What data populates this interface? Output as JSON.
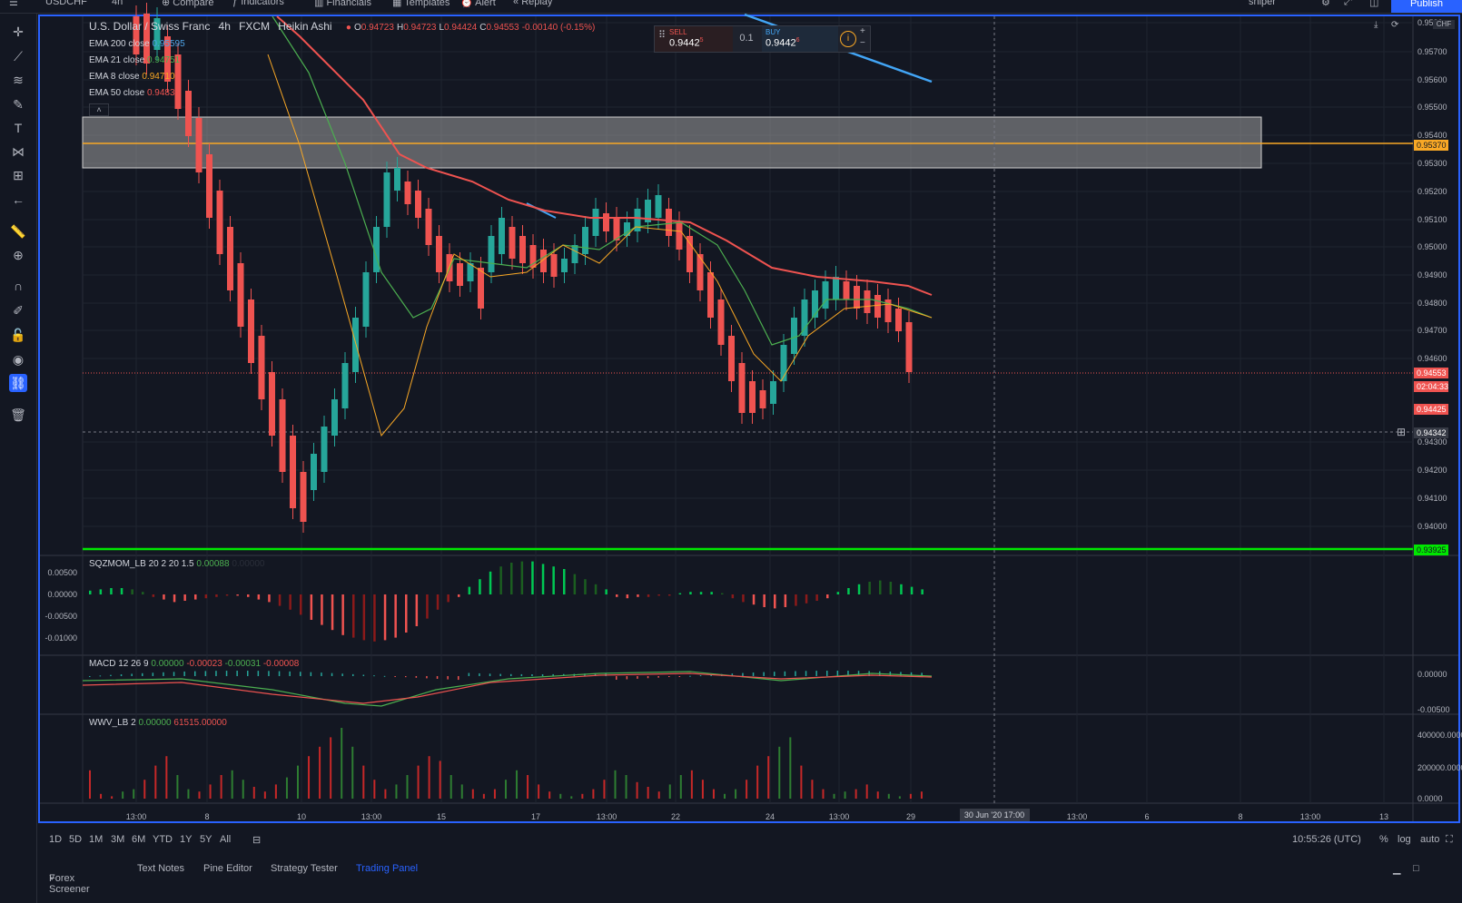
{
  "topbar": {
    "symbol": "USDCHF",
    "interval": "4h",
    "compare": "Compare",
    "indicators": "Indicators",
    "financials": "Financials",
    "templates": "Templates",
    "alert": "Alert",
    "replay": "Replay",
    "layout_name": "sniper",
    "publish": "Publish"
  },
  "legend": {
    "title": "U.S. Dollar / Swiss Franc",
    "interval": "4h",
    "exchange": "FXCM",
    "charttype": "Heikin Ashi",
    "o_label": "O",
    "o": "0.94723",
    "h_label": "H",
    "h": "0.94723",
    "l_label": "L",
    "l": "0.94424",
    "c_label": "C",
    "c": "0.94553",
    "chg": "-0.00140 (-0.15%)",
    "emas": [
      {
        "label": "EMA 200 close",
        "value": "0.95595",
        "color": "#4ea3e6"
      },
      {
        "label": "EMA 21 close",
        "value": "0.94751",
        "color": "#4caf50"
      },
      {
        "label": "EMA 8 close",
        "value": "0.94710",
        "color": "#f9a825"
      },
      {
        "label": "EMA 50 close",
        "value": "0.94836",
        "color": "#ef5350"
      }
    ]
  },
  "trade": {
    "sell_label": "SELL",
    "sell_price": "0.9442",
    "sell_pip": "5",
    "qty": "0.1",
    "buy_label": "BUY",
    "buy_price": "0.9442",
    "buy_pip": "6",
    "plus": "+",
    "minus": "−"
  },
  "price_axis": {
    "currency": "CHF",
    "ticks": [
      "0.9580",
      "0.95700",
      "0.95600",
      "0.95500",
      "0.95400",
      "0.95300",
      "0.95200",
      "0.95100",
      "0.95000",
      "0.94900",
      "0.94800",
      "0.94700",
      "0.94600",
      "0.94300",
      "0.94200",
      "0.94100",
      "0.94000"
    ],
    "marker_orange": "0.95370",
    "marker_price": "0.94553",
    "marker_countdown": "02:04:33",
    "marker_bid": "0.94425",
    "marker_cursor": "0.94342",
    "marker_green": "0.93925"
  },
  "time_axis": {
    "labels": [
      "13:00",
      "8",
      "10",
      "13:00",
      "15",
      "17",
      "13:00",
      "22",
      "24",
      "13:00",
      "29",
      "13:00",
      "6",
      "8",
      "13:00",
      "13"
    ],
    "cursor_label": "30 Jun '20   17:00"
  },
  "sqz": {
    "title": "SQZMOM_LB 20 2 20 1.5",
    "v1": "0.00088",
    "v2": "0.00000",
    "ticks": [
      "0.00500",
      "0.00000",
      "-0.00500",
      "-0.01000"
    ]
  },
  "macd": {
    "title": "MACD 12 26 9",
    "v1": "0.00000",
    "v2": "-0.00023",
    "v3": "-0.00031",
    "v4": "-0.00008",
    "ticks": [
      "0.00000",
      "-0.00500"
    ]
  },
  "wwv": {
    "title": "WWV_LB 2",
    "v1": "0.00000",
    "v2": "61515.00000",
    "ticks": [
      "400000.0000",
      "200000.0000",
      "0.0000"
    ]
  },
  "bottombar": {
    "ranges": [
      "1D",
      "5D",
      "1M",
      "3M",
      "6M",
      "YTD",
      "1Y",
      "5Y",
      "All"
    ],
    "clock": "10:55:26 (UTC)",
    "pct": "%",
    "log": "log",
    "auto": "auto"
  },
  "tabs": [
    "Forex Screener",
    "Text Notes",
    "Pine Editor",
    "Strategy Tester",
    "Trading Panel"
  ],
  "colors": {
    "up": "#26a69a",
    "down": "#ef5350",
    "accent": "#2962ff",
    "green_line": "#00e600",
    "orange_line": "#f9a825"
  }
}
